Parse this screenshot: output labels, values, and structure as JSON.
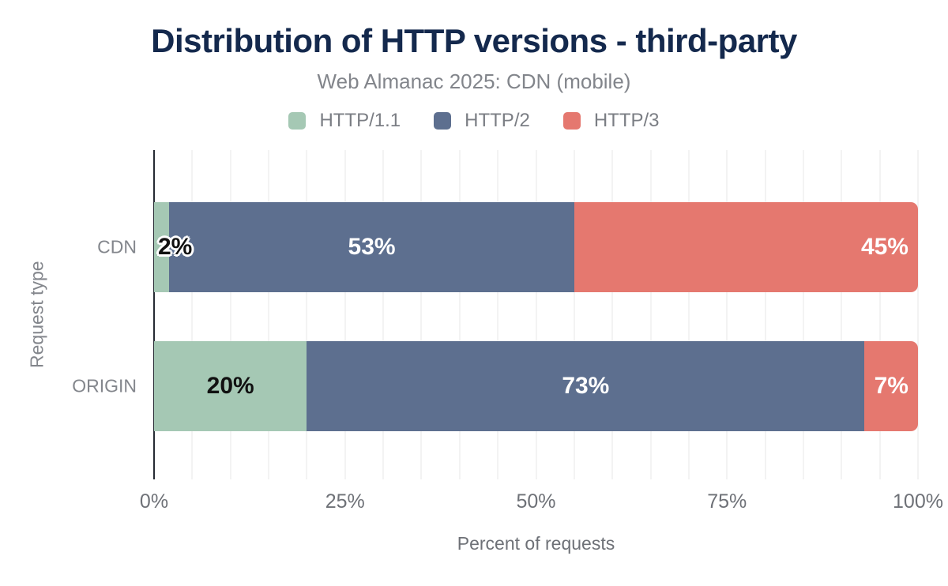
{
  "chart_data": {
    "type": "bar",
    "orientation": "horizontal",
    "stacked": true,
    "title": "Distribution of HTTP versions - third-party",
    "subtitle": "Web Almanac 2025: CDN (mobile)",
    "categories": [
      "CDN",
      "ORIGIN"
    ],
    "series": [
      {
        "name": "HTTP/1.1",
        "color": "#a5c8b4",
        "label_color": "#111111",
        "values": [
          2,
          20
        ]
      },
      {
        "name": "HTTP/2",
        "color": "#5d6f8f",
        "label_color": "#ffffff",
        "values": [
          53,
          73
        ]
      },
      {
        "name": "HTTP/3",
        "color": "#e5786f",
        "label_color": "#ffffff",
        "values": [
          45,
          7
        ]
      }
    ],
    "xlabel": "Percent of requests",
    "ylabel": "Request type",
    "x_ticks": [
      {
        "label": "0%",
        "value": 0
      },
      {
        "label": "25%",
        "value": 25
      },
      {
        "label": "50%",
        "value": 50
      },
      {
        "label": "75%",
        "value": 75
      },
      {
        "label": "100%",
        "value": 100
      }
    ],
    "xlim": [
      0,
      100
    ],
    "grid_interval": 5,
    "value_suffix": "%",
    "legend_position": "top",
    "axis_line_color": "#262b33",
    "gridline_color": "#f3f3f3"
  }
}
